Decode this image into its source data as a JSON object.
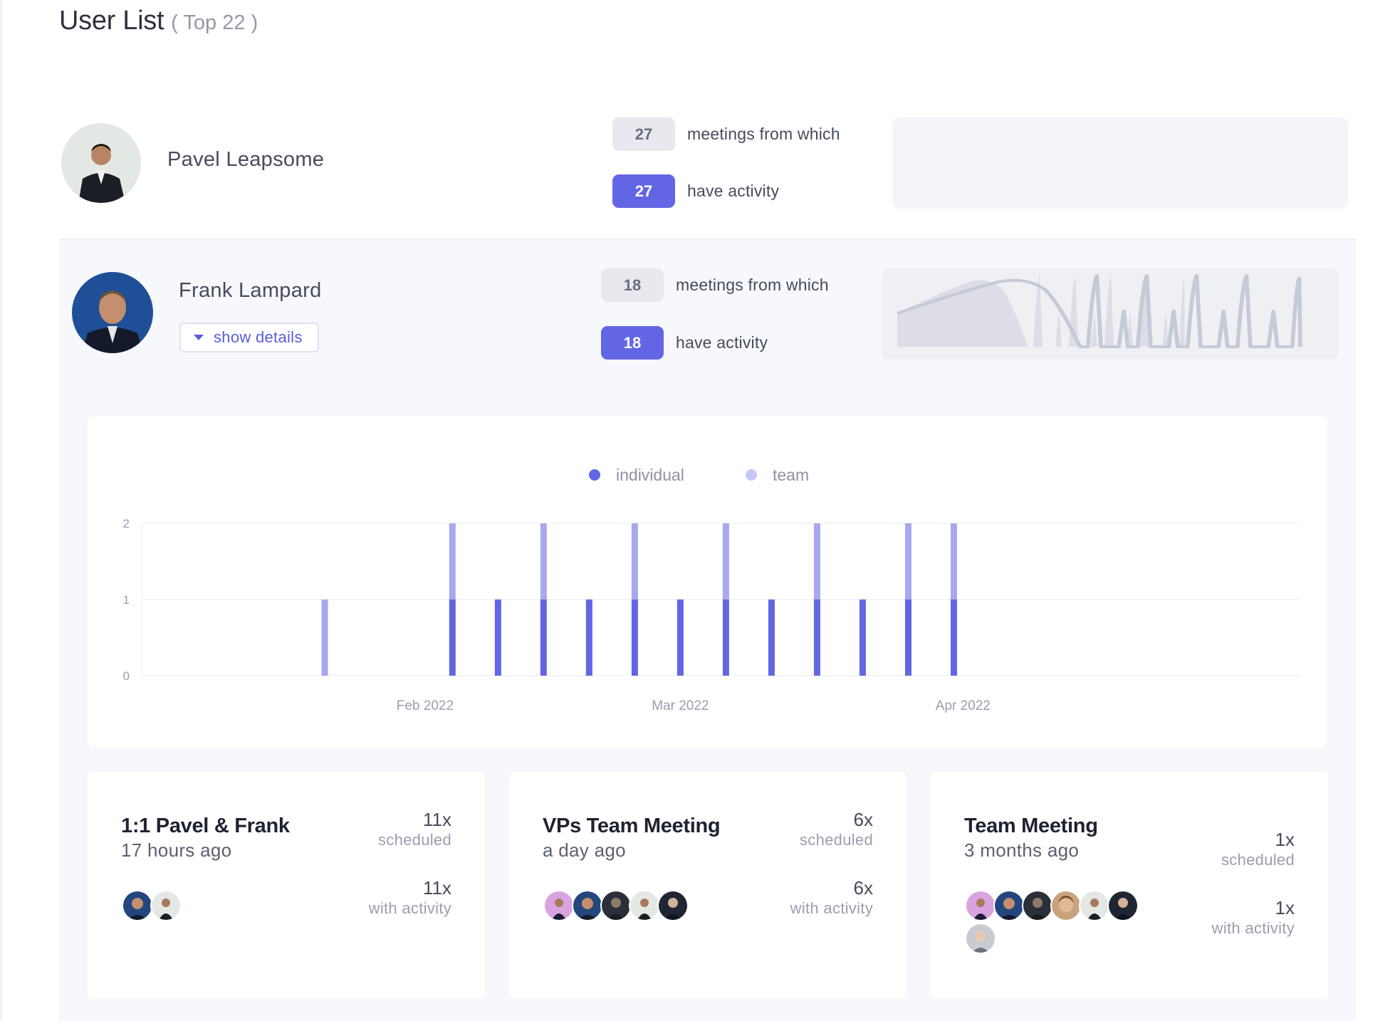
{
  "header": {
    "title": "User List",
    "subtitle": "( Top 22 )"
  },
  "users": [
    {
      "name": "Pavel Leapsome",
      "meetings_count": "27",
      "meetings_label": "meetings from which",
      "activity_count": "27",
      "activity_label": "have activity"
    },
    {
      "name": "Frank Lampard",
      "show_details_label": "show details",
      "meetings_count": "18",
      "meetings_label": "meetings from which",
      "activity_count": "18",
      "activity_label": "have activity"
    }
  ],
  "chart_data": {
    "type": "bar",
    "stacked": true,
    "legend": [
      {
        "name": "individual",
        "color": "#6366e4"
      },
      {
        "name": "team",
        "color": "#c5c8f7"
      }
    ],
    "x_tick_labels": [
      "Feb 2022",
      "Mar 2022",
      "Apr 2022"
    ],
    "y_ticks": [
      0,
      1,
      2
    ],
    "ylim": [
      0,
      2
    ],
    "x": [
      "2022-01-21",
      "2022-02-04",
      "2022-02-09",
      "2022-02-14",
      "2022-02-19",
      "2022-02-24",
      "2022-03-01",
      "2022-03-06",
      "2022-03-11",
      "2022-03-16",
      "2022-03-21",
      "2022-03-26",
      "2022-03-31"
    ],
    "series": [
      {
        "name": "individual",
        "values": [
          0,
          1,
          1,
          1,
          1,
          1,
          1,
          1,
          1,
          1,
          1,
          1,
          1
        ]
      },
      {
        "name": "team",
        "values": [
          1,
          1,
          0,
          1,
          0,
          1,
          0,
          1,
          0,
          1,
          0,
          1,
          1
        ]
      }
    ],
    "legend_position": "top-center",
    "grid": true
  },
  "meetings": [
    {
      "title": "1:1 Pavel & Frank",
      "time": "17 hours ago",
      "scheduled_count": "11x",
      "scheduled_label": "scheduled",
      "activity_count": "11x",
      "activity_label": "with activity"
    },
    {
      "title": "VPs Team Meeting",
      "time": "a day ago",
      "scheduled_count": "6x",
      "scheduled_label": "scheduled",
      "activity_count": "6x",
      "activity_label": "with activity"
    },
    {
      "title": "Team Meeting",
      "time": "3 months ago",
      "scheduled_count": "1x",
      "scheduled_label": "scheduled",
      "activity_count": "1x",
      "activity_label": "with activity"
    }
  ],
  "colors": {
    "accent": "#6366e4",
    "accent_light": "#c5c8f7",
    "badge_gray": "#e8e9ee"
  }
}
